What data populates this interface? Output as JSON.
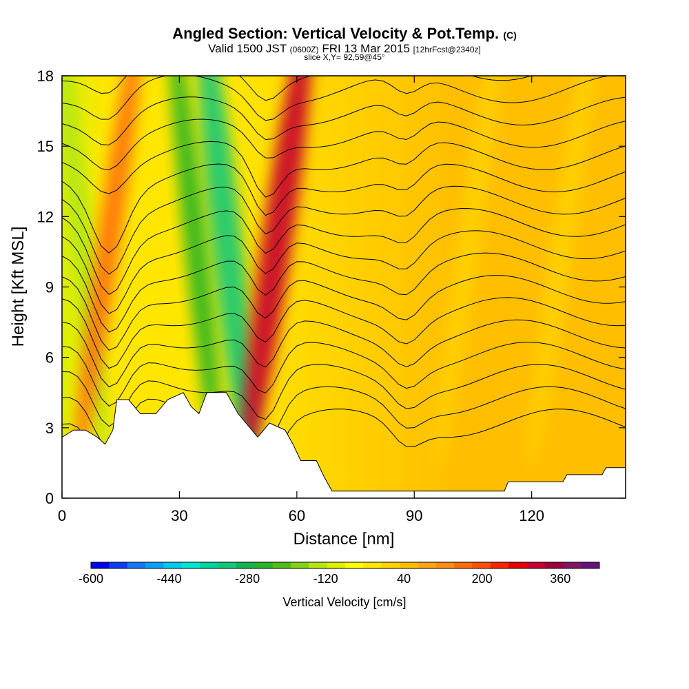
{
  "header": {
    "title_main": "Angled Section: Vertical Velocity & Pot.Temp.",
    "title_unit": "(C)",
    "valid_prefix": "Valid 1500 JST",
    "valid_utc": "(0600Z)",
    "valid_date": "FRI 13 Mar 2015",
    "forecast_note": "[12hrFcst@2340z]",
    "slice": "slice X,Y= 92,59@45°"
  },
  "chart_data": {
    "type": "heatmap",
    "xlabel": "Distance [nm]",
    "ylabel": "Height [Kft MSL]",
    "xlim": [
      0,
      144
    ],
    "ylim": [
      0,
      18
    ],
    "x_ticks": [
      0,
      30,
      60,
      90,
      120
    ],
    "y_ticks": [
      0,
      3,
      6,
      9,
      12,
      15,
      18
    ],
    "colorbar": {
      "label": "Vertical Velocity [cm/s]",
      "min": -600,
      "max": 440,
      "step": 40,
      "tick_labels": [
        "-600",
        "-440",
        "-280",
        "-120",
        "40",
        "200",
        "360"
      ],
      "tick_values": [
        -600,
        -440,
        -280,
        -120,
        40,
        200,
        360
      ],
      "colors": [
        "#0000f0",
        "#0a3cf5",
        "#1478f5",
        "#0aa0f5",
        "#00c8f0",
        "#00e6d2",
        "#00d2a0",
        "#14c878",
        "#14b450",
        "#28b428",
        "#50be14",
        "#82d214",
        "#b4e614",
        "#dcf000",
        "#ffff00",
        "#ffe600",
        "#ffd200",
        "#ffbe00",
        "#ffa514",
        "#ff8c14",
        "#ff6e0a",
        "#ff500a",
        "#f52800",
        "#e60000",
        "#c8002d",
        "#a0003c",
        "#821464",
        "#641478"
      ]
    },
    "updrafts": [
      {
        "x": 12,
        "w": 200,
        "note": "red band"
      },
      {
        "x": 55,
        "w": 360,
        "note": "strong red band"
      },
      {
        "x": 104,
        "w": 40
      },
      {
        "x": 128,
        "w": 40
      }
    ],
    "downdrafts": [
      {
        "x": 34,
        "w": -240
      },
      {
        "x": 42,
        "w": -320
      },
      {
        "x": 5,
        "w": -120
      }
    ],
    "theta_contours_count": 17,
    "terrain_kft": [
      [
        0,
        2.6
      ],
      [
        3,
        2.9
      ],
      [
        6,
        2.9
      ],
      [
        9,
        2.6
      ],
      [
        11,
        2.3
      ],
      [
        13,
        2.9
      ],
      [
        14,
        4.2
      ],
      [
        17,
        4.2
      ],
      [
        20,
        3.6
      ],
      [
        24,
        3.6
      ],
      [
        27,
        4.2
      ],
      [
        31,
        4.5
      ],
      [
        33,
        3.9
      ],
      [
        35,
        3.6
      ],
      [
        37,
        4.5
      ],
      [
        42,
        4.5
      ],
      [
        45,
        3.6
      ],
      [
        48,
        3.0
      ],
      [
        50,
        2.6
      ],
      [
        53,
        3.2
      ],
      [
        57,
        2.9
      ],
      [
        59,
        2.3
      ],
      [
        61,
        1.6
      ],
      [
        65,
        1.6
      ],
      [
        67,
        0.9
      ],
      [
        69,
        0.3
      ],
      [
        95,
        0.3
      ],
      [
        113,
        0.3
      ],
      [
        114,
        0.7
      ],
      [
        128,
        0.7
      ],
      [
        129,
        1.0
      ],
      [
        138,
        1.0
      ],
      [
        139,
        1.3
      ],
      [
        144,
        1.3
      ]
    ]
  }
}
